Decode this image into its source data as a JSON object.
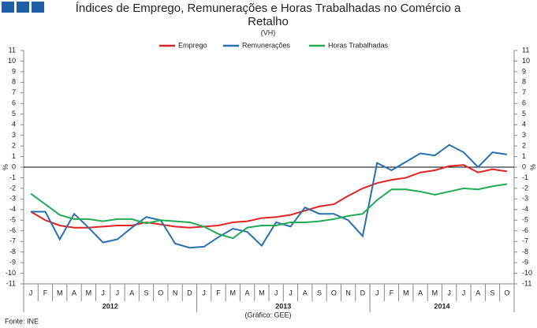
{
  "chart_data": {
    "type": "line",
    "title": "Índices de Emprego, Remunerações e Horas Trabalhadas no Comércio a Retalho",
    "subtitle": "(VH)",
    "y_label": "%",
    "y2_label": "%",
    "source": "Fonte: INE",
    "note": "(Gráfico: GEE)",
    "categories": [
      "J",
      "F",
      "M",
      "A",
      "M",
      "J",
      "J",
      "A",
      "S",
      "O",
      "N",
      "D",
      "J",
      "F",
      "M",
      "A",
      "M",
      "J",
      "J",
      "A",
      "S",
      "O",
      "N",
      "D",
      "J",
      "F",
      "M",
      "A",
      "M",
      "J",
      "J",
      "A",
      "S",
      "O"
    ],
    "years": [
      "2012",
      "2013",
      "2014"
    ],
    "ylim": [
      -11,
      11
    ],
    "yticks": [
      -11,
      -10,
      -9,
      -8,
      -7,
      -6,
      -5,
      -4,
      -3,
      -2,
      -1,
      0,
      1,
      2,
      3,
      4,
      5,
      6,
      7,
      8,
      9,
      10,
      11
    ],
    "y2lim": [
      -11,
      11
    ],
    "y2ticks": [
      -11,
      -10,
      -9,
      -8,
      -7,
      -6,
      -5,
      -4,
      -3,
      -2,
      -1,
      0,
      1,
      2,
      3,
      4,
      5,
      6,
      7,
      8,
      9,
      10,
      11
    ],
    "grid": false,
    "legend": "top",
    "series": [
      {
        "name": "Emprego",
        "color": "#e02424",
        "values": [
          -4.2,
          -5.0,
          -5.5,
          -5.7,
          -5.7,
          -5.6,
          -5.5,
          -5.5,
          -5.2,
          -5.4,
          -5.6,
          -5.7,
          -5.6,
          -5.5,
          -5.2,
          -5.1,
          -4.8,
          -4.7,
          -4.5,
          -4.1,
          -3.7,
          -3.5,
          -2.7,
          -2.0,
          -1.5,
          -1.2,
          -1.0,
          -0.5,
          -0.3,
          0.1,
          0.2,
          -0.5,
          -0.2,
          -0.4
        ]
      },
      {
        "name": "Remunerações",
        "color": "#2a6fb0",
        "values": [
          -4.2,
          -4.2,
          -6.8,
          -4.4,
          -5.7,
          -7.1,
          -6.8,
          -5.7,
          -4.7,
          -5.0,
          -7.2,
          -7.6,
          -7.5,
          -6.6,
          -5.8,
          -6.1,
          -7.4,
          -5.2,
          -5.6,
          -3.8,
          -4.4,
          -4.4,
          -5.0,
          -6.5,
          0.4,
          -0.3,
          0.5,
          1.3,
          1.1,
          2.1,
          1.4,
          0.0,
          1.4,
          1.2
        ]
      },
      {
        "name": "Horas Trabalhadas",
        "color": "#22aa55",
        "values": [
          -2.5,
          -3.5,
          -4.5,
          -4.9,
          -4.9,
          -5.1,
          -4.9,
          -4.9,
          -5.3,
          -5.0,
          -5.1,
          -5.2,
          -5.6,
          -6.3,
          -6.7,
          -5.7,
          -5.5,
          -5.5,
          -5.2,
          -5.2,
          -5.1,
          -4.9,
          -4.6,
          -4.4,
          -3.1,
          -2.1,
          -2.1,
          -2.3,
          -2.6,
          -2.3,
          -2.0,
          -2.1,
          -1.8,
          -1.6
        ]
      }
    ]
  }
}
